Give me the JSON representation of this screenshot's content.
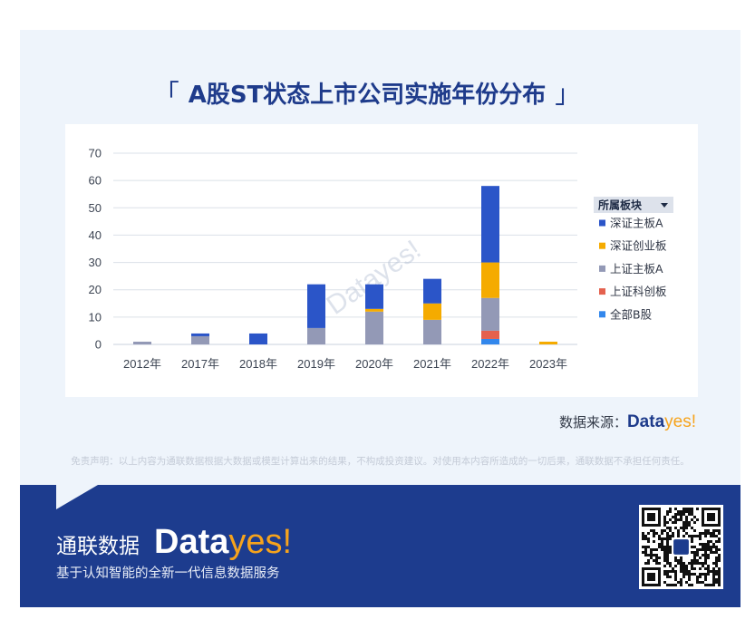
{
  "title_brackets": {
    "open": "「",
    "close": "」"
  },
  "watermark": "Datayes!",
  "source": {
    "label": "数据来源：",
    "brand_part1": "Data",
    "brand_part2": "yes!"
  },
  "disclaimer": "免责声明：以上内容为通联数据根据大数据或模型计算出来的结果，不构成投资建议。对使用本内容所造成的一切后果，通联数据不承担任何责任。",
  "banner": {
    "company": "通联数据",
    "brand_part1": "Data",
    "brand_part2": "yes!",
    "tagline": "基于认知智能的全新一代信息数据服务",
    "qr_icon": "qr-code-icon"
  },
  "colors": {
    "page_background": "#eef4fb",
    "title": "#1e3b8b",
    "banner": "#1d3c8e",
    "brand_orange": "#f6a31c"
  },
  "chart_data": {
    "type": "bar",
    "stacked": true,
    "title": "A股ST状态上市公司实施年份分布",
    "categories": [
      "2012年",
      "2017年",
      "2018年",
      "2019年",
      "2020年",
      "2021年",
      "2022年",
      "2023年"
    ],
    "series": [
      {
        "name": "深证主板A",
        "color": "#2b55c8",
        "values": [
          0,
          1,
          4,
          16,
          9,
          9,
          28,
          0
        ]
      },
      {
        "name": "深证创业板",
        "color": "#f5ab00",
        "values": [
          0,
          0,
          0,
          0,
          1,
          6,
          13,
          1
        ]
      },
      {
        "name": "上证主板A",
        "color": "#9399b6",
        "values": [
          1,
          3,
          0,
          6,
          12,
          9,
          12,
          0
        ]
      },
      {
        "name": "上证科创板",
        "color": "#e4614e",
        "values": [
          0,
          0,
          0,
          0,
          0,
          0,
          3,
          0
        ]
      },
      {
        "name": "全部B股",
        "color": "#3287ec",
        "values": [
          0,
          0,
          0,
          0,
          0,
          0,
          2,
          0
        ]
      }
    ],
    "ylim": [
      0,
      70
    ],
    "yticks": [
      0,
      10,
      20,
      30,
      40,
      50,
      60,
      70
    ],
    "grid": true,
    "legend": {
      "title": "所属板块",
      "position": "right",
      "dropdown_icon": "dropdown-arrow-icon"
    }
  }
}
